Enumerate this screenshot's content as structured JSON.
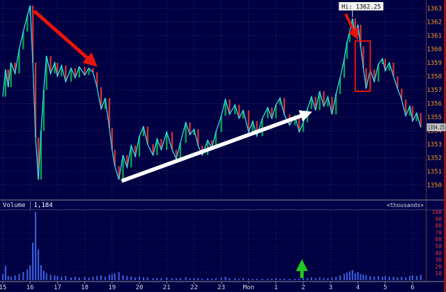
{
  "colors": {
    "background": "#000042",
    "grid": "#2e2e72",
    "price_line": "#3ad6f2",
    "bar_up": "#00c24a",
    "bar_down": "#f03a2e",
    "bar_flat": "#d6c832",
    "price_axis_text": "#f09a28",
    "time_axis_text": "#d8d8e0",
    "volume_axis_text": "#e03c3c",
    "volume_bar": "#3b5bd8",
    "annotation_red": "#e8140a",
    "annotation_white": "#ffffff",
    "annotation_green": "#1ecb1e",
    "last_price_bg": "#c6c6c6",
    "hi_label_bg": "#f2f2f2",
    "right_edge_strip": "#8c1616"
  },
  "volume_panel": {
    "label": "Volume",
    "value": "1,184",
    "unit": "<thousands>"
  },
  "annotations": {
    "hi_label": {
      "text": "Hi: 1362.25",
      "at_hour": 27.8,
      "at_price": 1362.25,
      "box_hour": 27.3
    },
    "last_price_label": {
      "text": "1354.25",
      "price": 1354.25
    },
    "red_arrow_1": {
      "from_hour": 16.15,
      "from_price": 1362.8,
      "to_hour": 18.35,
      "to_price": 1358.9
    },
    "red_arrow_2": {
      "from_hour": 27.55,
      "from_price": 1362.6,
      "to_hour": 27.95,
      "to_price": 1360.9
    },
    "white_arrow": {
      "from_hour": 19.35,
      "from_price": 1350.3,
      "to_hour": 26.2,
      "to_price": 1355.3
    },
    "red_box": {
      "hour_start": 27.9,
      "hour_end": 28.45,
      "price_top": 1360.6,
      "price_bottom": 1356.9
    },
    "green_arrow": {
      "hour": 25.95
    }
  },
  "chart_data": {
    "type": "line",
    "title": "",
    "high": 1362.25,
    "last": 1354.25,
    "price_axis": {
      "min": 1350,
      "max": 1363.5,
      "ticks": [
        1363,
        1362,
        1361,
        1360,
        1359,
        1358,
        1357,
        1356,
        1355,
        1354,
        1353,
        1352,
        1351,
        1350
      ]
    },
    "time_axis": {
      "labels": [
        "15",
        "16",
        "17",
        "18",
        "19",
        "20",
        "21",
        "22",
        "23",
        "Mon",
        "1",
        "2",
        "3",
        "4",
        "5",
        "6"
      ],
      "hours": [
        15,
        16,
        17,
        18,
        19,
        20,
        21,
        22,
        23,
        24,
        25,
        26,
        27,
        28,
        29,
        30
      ]
    },
    "volume_axis": {
      "min": 0,
      "max": 102,
      "ticks": [
        100,
        90,
        80,
        70,
        60,
        50,
        40,
        30,
        20,
        10
      ]
    },
    "x_hours": [
      15.0,
      15.1,
      15.2,
      15.3,
      15.45,
      15.6,
      15.75,
      15.9,
      16.0,
      16.1,
      16.2,
      16.3,
      16.4,
      16.5,
      16.6,
      16.75,
      16.9,
      17.0,
      17.15,
      17.3,
      17.5,
      17.65,
      17.8,
      18.0,
      18.15,
      18.3,
      18.45,
      18.6,
      18.75,
      18.9,
      19.0,
      19.1,
      19.25,
      19.4,
      19.55,
      19.7,
      19.85,
      20.0,
      20.15,
      20.3,
      20.5,
      20.65,
      20.8,
      21.0,
      21.2,
      21.35,
      21.5,
      21.7,
      21.85,
      22.0,
      22.15,
      22.3,
      22.5,
      22.65,
      22.8,
      23.0,
      23.15,
      23.3,
      23.5,
      23.65,
      23.8,
      24.0,
      24.15,
      24.3,
      24.5,
      24.7,
      24.85,
      25.0,
      25.15,
      25.3,
      25.5,
      25.7,
      25.85,
      26.0,
      26.15,
      26.3,
      26.45,
      26.6,
      26.75,
      26.9,
      27.05,
      27.2,
      27.35,
      27.5,
      27.6,
      27.7,
      27.8,
      27.9,
      28.0,
      28.1,
      28.2,
      28.3,
      28.45,
      28.6,
      28.75,
      28.9,
      29.0,
      29.15,
      29.3,
      29.45,
      29.6,
      29.75,
      29.9,
      30.0,
      30.15,
      30.3
    ],
    "price": [
      1356.5,
      1358.5,
      1357.2,
      1359.0,
      1358.2,
      1360.0,
      1361.3,
      1362.5,
      1363.2,
      1359.0,
      1353.5,
      1350.4,
      1354.0,
      1357.0,
      1359.5,
      1358.2,
      1359.0,
      1358.0,
      1358.8,
      1357.6,
      1358.6,
      1357.9,
      1358.7,
      1358.1,
      1358.6,
      1358.3,
      1357.2,
      1355.6,
      1356.4,
      1354.2,
      1352.6,
      1351.4,
      1350.4,
      1352.2,
      1351.3,
      1352.9,
      1352.1,
      1353.6,
      1354.3,
      1353.0,
      1352.2,
      1353.4,
      1352.6,
      1353.9,
      1352.6,
      1351.9,
      1353.1,
      1354.6,
      1353.7,
      1354.1,
      1352.9,
      1352.2,
      1353.3,
      1352.7,
      1353.9,
      1355.1,
      1356.3,
      1355.2,
      1355.9,
      1354.9,
      1355.5,
      1353.9,
      1354.7,
      1353.6,
      1354.9,
      1355.7,
      1354.9,
      1355.9,
      1356.4,
      1355.2,
      1354.4,
      1355.1,
      1353.9,
      1354.6,
      1355.6,
      1356.5,
      1355.5,
      1356.9,
      1355.8,
      1356.5,
      1355.2,
      1356.7,
      1357.9,
      1359.3,
      1360.5,
      1361.3,
      1362.25,
      1361.0,
      1361.8,
      1360.2,
      1358.6,
      1357.1,
      1358.5,
      1357.6,
      1358.9,
      1359.3,
      1358.4,
      1359.0,
      1358.0,
      1357.1,
      1356.3,
      1355.1,
      1355.8,
      1354.7,
      1355.3,
      1354.25
    ],
    "volume_thousands": [
      9,
      21,
      6,
      5,
      7,
      9,
      12,
      16,
      22,
      55,
      100,
      45,
      22,
      14,
      10,
      8,
      7,
      6,
      5,
      6,
      4,
      5,
      4,
      5,
      4,
      5,
      6,
      7,
      5,
      8,
      9,
      10,
      12,
      7,
      6,
      5,
      4,
      5,
      4,
      4,
      3,
      3,
      3,
      4,
      3,
      3,
      3,
      4,
      3,
      3,
      3,
      2,
      3,
      2,
      3,
      4,
      5,
      3,
      3,
      2,
      3,
      2,
      2,
      2,
      2,
      2,
      2,
      3,
      2,
      2,
      2,
      2,
      2,
      3,
      3,
      4,
      3,
      4,
      3,
      3,
      4,
      5,
      7,
      9,
      11,
      13,
      15,
      10,
      12,
      9,
      8,
      7,
      6,
      5,
      6,
      5,
      6,
      5,
      5,
      4,
      5,
      4,
      6,
      7,
      6,
      8
    ]
  }
}
